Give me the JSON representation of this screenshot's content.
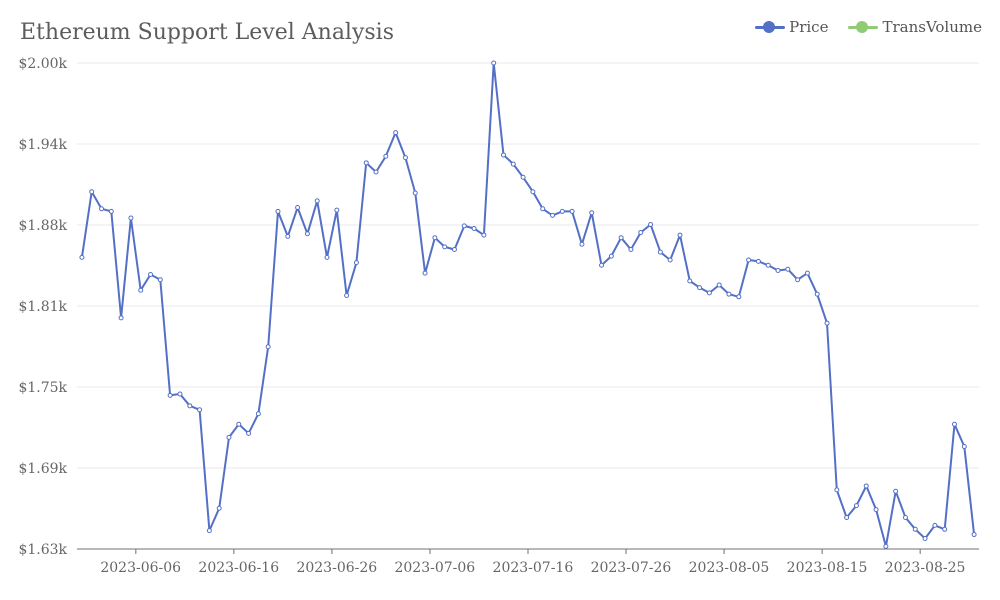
{
  "chart_data": {
    "type": "line",
    "title": "Ethereum Support Level Analysis",
    "legend": [
      {
        "name": "Price",
        "color": "#5470c6"
      },
      {
        "name": "TransVolume",
        "color": "#91cc75"
      }
    ],
    "legend_position": "top-right",
    "y_ticks": [
      "$1.63k",
      "$1.69k",
      "$1.75k",
      "$1.81k",
      "$1.88k",
      "$1.94k",
      "$2.00k"
    ],
    "ylim": [
      1630,
      2000
    ],
    "x_ticks": [
      "2023-06-06",
      "2023-06-16",
      "2023-06-26",
      "2023-07-06",
      "2023-07-16",
      "2023-07-26",
      "2023-08-05",
      "2023-08-15",
      "2023-08-25"
    ],
    "grid": "horizontal",
    "series": [
      {
        "name": "Price",
        "color": "#5470c6",
        "x": [
          "2023-05-31",
          "2023-06-01",
          "2023-06-02",
          "2023-06-03",
          "2023-06-04",
          "2023-06-05",
          "2023-06-06",
          "2023-06-07",
          "2023-06-08",
          "2023-06-09",
          "2023-06-10",
          "2023-06-11",
          "2023-06-12",
          "2023-06-13",
          "2023-06-14",
          "2023-06-15",
          "2023-06-16",
          "2023-06-17",
          "2023-06-18",
          "2023-06-19",
          "2023-06-20",
          "2023-06-21",
          "2023-06-22",
          "2023-06-23",
          "2023-06-24",
          "2023-06-25",
          "2023-06-26",
          "2023-06-27",
          "2023-06-28",
          "2023-06-29",
          "2023-06-30",
          "2023-07-01",
          "2023-07-02",
          "2023-07-03",
          "2023-07-04",
          "2023-07-05",
          "2023-07-06",
          "2023-07-07",
          "2023-07-08",
          "2023-07-09",
          "2023-07-10",
          "2023-07-11",
          "2023-07-12",
          "2023-07-13",
          "2023-07-14",
          "2023-07-15",
          "2023-07-16",
          "2023-07-17",
          "2023-07-18",
          "2023-07-19",
          "2023-07-20",
          "2023-07-21",
          "2023-07-22",
          "2023-07-23",
          "2023-07-24",
          "2023-07-25",
          "2023-07-26",
          "2023-07-27",
          "2023-07-28",
          "2023-07-29",
          "2023-07-30",
          "2023-07-31",
          "2023-08-01",
          "2023-08-02",
          "2023-08-03",
          "2023-08-04",
          "2023-08-05",
          "2023-08-06",
          "2023-08-07",
          "2023-08-08",
          "2023-08-09",
          "2023-08-10",
          "2023-08-11",
          "2023-08-12",
          "2023-08-13",
          "2023-08-14",
          "2023-08-15",
          "2023-08-16",
          "2023-08-17",
          "2023-08-18",
          "2023-08-19",
          "2023-08-20",
          "2023-08-21",
          "2023-08-22",
          "2023-08-23",
          "2023-08-24",
          "2023-08-25",
          "2023-08-26",
          "2023-08-27",
          "2023-08-28",
          "2023-08-29",
          "2023-08-30"
        ],
        "values": [
          1852,
          1902,
          1889,
          1887,
          1806,
          1882,
          1827,
          1839,
          1835,
          1747,
          1748,
          1739,
          1736,
          1644,
          1661,
          1715,
          1725,
          1718,
          1733,
          1784,
          1887,
          1868,
          1890,
          1870,
          1895,
          1852,
          1888,
          1823,
          1848,
          1924,
          1917,
          1929,
          1947,
          1928,
          1901,
          1840,
          1867,
          1860,
          1858,
          1876,
          1874,
          1869,
          2000,
          1930,
          1923,
          1913,
          1902,
          1889,
          1884,
          1887,
          1887,
          1862,
          1886,
          1846,
          1853,
          1867,
          1858,
          1871,
          1877,
          1856,
          1850,
          1869,
          1834,
          1829,
          1825,
          1831,
          1824,
          1822,
          1850,
          1849,
          1846,
          1842,
          1843,
          1835,
          1840,
          1824,
          1802,
          1675,
          1654,
          1663,
          1678,
          1660,
          1632,
          1674,
          1654,
          1645,
          1638,
          1648,
          1645,
          1725,
          1708,
          1641
        ]
      },
      {
        "name": "TransVolume",
        "color": "#91cc75",
        "values": []
      }
    ]
  }
}
